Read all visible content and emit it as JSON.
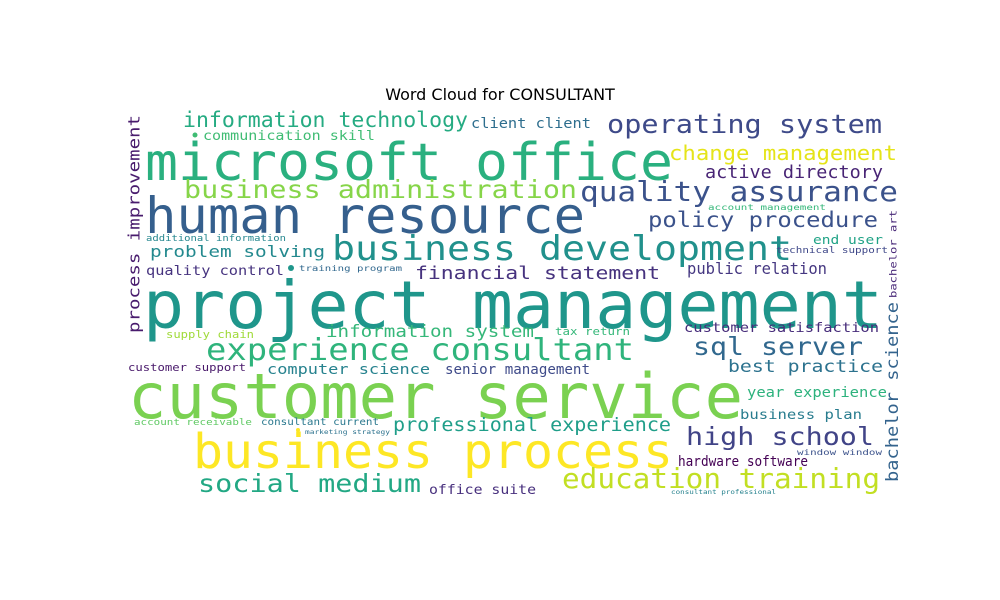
{
  "chart_data": {
    "type": "wordcloud",
    "title": "Word Cloud for CONSULTANT",
    "words": [
      {
        "text": "project management",
        "color": "#1f968b"
      },
      {
        "text": "customer service",
        "color": "#7ad151"
      },
      {
        "text": "microsoft office",
        "color": "#2ab07f"
      },
      {
        "text": "human resource",
        "color": "#355f8d"
      },
      {
        "text": "business process",
        "color": "#fde725"
      },
      {
        "text": "business development",
        "color": "#21918c"
      },
      {
        "text": "experience consultant",
        "color": "#2fb47c"
      },
      {
        "text": "quality assurance",
        "color": "#3b528b"
      },
      {
        "text": "operating system",
        "color": "#3e4a89"
      },
      {
        "text": "education training",
        "color": "#c2df23"
      },
      {
        "text": "business administration",
        "color": "#86d549"
      },
      {
        "text": "social medium",
        "color": "#22a884"
      },
      {
        "text": "high school",
        "color": "#414487"
      },
      {
        "text": "information technology",
        "color": "#25ab82"
      },
      {
        "text": "sql server",
        "color": "#31688e"
      },
      {
        "text": "policy procedure",
        "color": "#3b528b"
      },
      {
        "text": "change management",
        "color": "#e5e419"
      },
      {
        "text": "professional experience",
        "color": "#1f9e89"
      },
      {
        "text": "active directory",
        "color": "#482475"
      },
      {
        "text": "financial statement",
        "color": "#46327e"
      },
      {
        "text": "information system",
        "color": "#35b779"
      },
      {
        "text": "best practice",
        "color": "#2c728e"
      },
      {
        "text": "problem solving",
        "color": "#23898e"
      },
      {
        "text": "public relation",
        "color": "#453781"
      },
      {
        "text": "process improvement",
        "color": "#481b6d"
      },
      {
        "text": "bachelor science",
        "color": "#33638d"
      },
      {
        "text": "customer satisfaction",
        "color": "#472d7b"
      },
      {
        "text": "year experience",
        "color": "#2db27d"
      },
      {
        "text": "computer science",
        "color": "#26828e"
      },
      {
        "text": "senior management",
        "color": "#3e4a89"
      },
      {
        "text": "hardware software",
        "color": "#440154"
      },
      {
        "text": "business plan",
        "color": "#287c8e"
      },
      {
        "text": "client client",
        "color": "#2e6e8e"
      },
      {
        "text": "communication skill",
        "color": "#3fbc73"
      },
      {
        "text": "quality control",
        "color": "#46337f"
      },
      {
        "text": "office suite",
        "color": "#472f7d"
      },
      {
        "text": "customer support",
        "color": "#48186a"
      },
      {
        "text": "end user",
        "color": "#20a386"
      },
      {
        "text": "supply chain",
        "color": "#a0da39"
      },
      {
        "text": "tax return",
        "color": "#35b779"
      },
      {
        "text": "account receivable",
        "color": "#5ec962"
      },
      {
        "text": "consultant current",
        "color": "#2a788e"
      },
      {
        "text": "bachelor art",
        "color": "#482878"
      },
      {
        "text": "additional information",
        "color": "#24868e"
      },
      {
        "text": "training program",
        "color": "#31688e"
      },
      {
        "text": "account management",
        "color": "#35b779"
      },
      {
        "text": "technical support",
        "color": "#3f4889"
      },
      {
        "text": "window window",
        "color": "#3b528b"
      },
      {
        "text": "marketing strategy",
        "color": "#2c728e"
      },
      {
        "text": "consultant professional",
        "color": "#26828e"
      }
    ]
  }
}
